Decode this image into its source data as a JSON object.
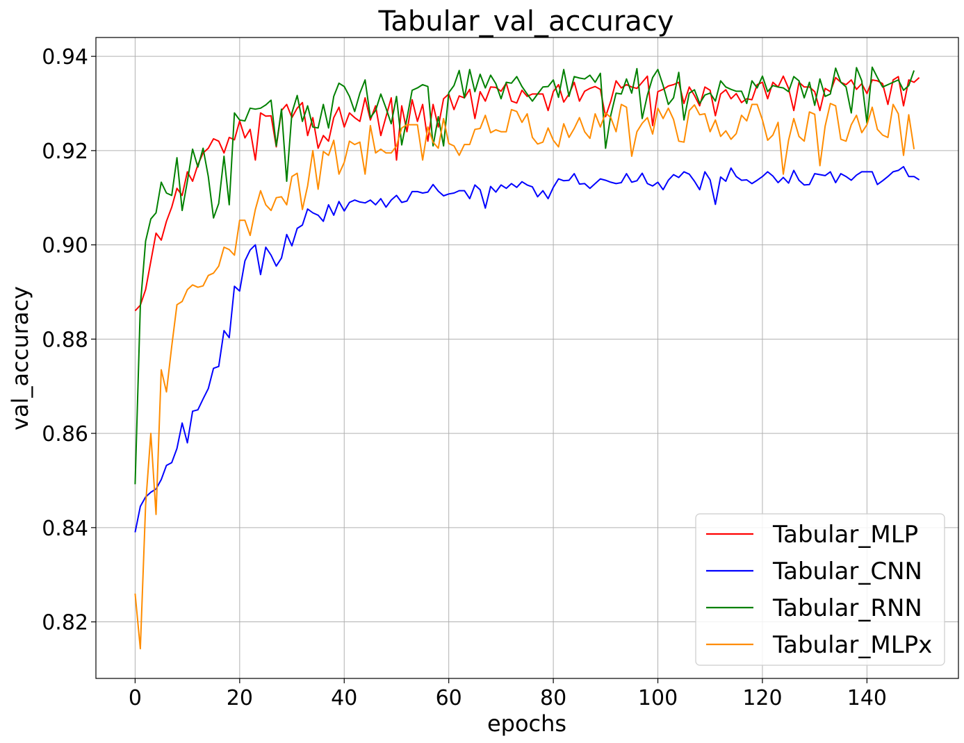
{
  "chart_data": {
    "type": "line",
    "title": "Tabular_val_accuracy",
    "xlabel": "epochs",
    "ylabel": "val_accuracy",
    "xlim": [
      -7.5,
      157.5
    ],
    "ylim": [
      0.808,
      0.944
    ],
    "xticks": [
      0,
      20,
      40,
      60,
      80,
      100,
      120,
      140
    ],
    "yticks": [
      0.82,
      0.84,
      0.86,
      0.88,
      0.9,
      0.92,
      0.94
    ],
    "ytick_labels": [
      "0.82",
      "0.84",
      "0.86",
      "0.88",
      "0.90",
      "0.92",
      "0.94"
    ],
    "grid": true,
    "legend_position": "bottom-right",
    "series": [
      {
        "name": "Tabular_MLP",
        "color": "#ff0000",
        "values": [
          0.886,
          0.8872,
          0.8905,
          0.8965,
          0.9025,
          0.901,
          0.905,
          0.908,
          0.912,
          0.9105,
          0.9155,
          0.9135,
          0.917,
          0.9195,
          0.9205,
          0.9225,
          0.922,
          0.9195,
          0.9228,
          0.9223,
          0.9263,
          0.9227,
          0.9245,
          0.918,
          0.928,
          0.9273,
          0.9274,
          0.9208,
          0.9285,
          0.9298,
          0.927,
          0.929,
          0.9302,
          0.9232,
          0.927,
          0.9205,
          0.9232,
          0.922,
          0.927,
          0.9292,
          0.925,
          0.928,
          0.927,
          0.9262,
          0.9312,
          0.9265,
          0.9295,
          0.9232,
          0.9272,
          0.9312,
          0.918,
          0.9295,
          0.924,
          0.9308,
          0.9262,
          0.9298,
          0.922,
          0.9298,
          0.925,
          0.931,
          0.932,
          0.9287,
          0.9316,
          0.9312,
          0.933,
          0.9268,
          0.9325,
          0.9305,
          0.9335,
          0.9334,
          0.9326,
          0.9343,
          0.9305,
          0.9301,
          0.9328,
          0.9315,
          0.932,
          0.932,
          0.932,
          0.9285,
          0.9325,
          0.934,
          0.9303,
          0.932,
          0.9345,
          0.9305,
          0.9326,
          0.9332,
          0.9336,
          0.933,
          0.9272,
          0.9305,
          0.9348,
          0.9333,
          0.934,
          0.9335,
          0.9332,
          0.9345,
          0.9358,
          0.9253,
          0.9325,
          0.933,
          0.9337,
          0.934,
          0.9345,
          0.93,
          0.9335,
          0.9317,
          0.9295,
          0.9335,
          0.9328,
          0.9274,
          0.932,
          0.9329,
          0.931,
          0.9321,
          0.9302,
          0.931,
          0.9308,
          0.934,
          0.9345,
          0.931,
          0.9345,
          0.9335,
          0.9358,
          0.9332,
          0.9285,
          0.9345,
          0.9335,
          0.9335,
          0.9325,
          0.9285,
          0.9332,
          0.9325,
          0.9355,
          0.9345,
          0.934,
          0.935,
          0.933,
          0.9342,
          0.9321,
          0.935,
          0.9348,
          0.9342,
          0.9298,
          0.935,
          0.9357,
          0.9295,
          0.935,
          0.9345,
          0.9355
        ]
      },
      {
        "name": "Tabular_CNN",
        "color": "#0000ff",
        "values": [
          0.839,
          0.8445,
          0.8465,
          0.8475,
          0.8482,
          0.8502,
          0.8532,
          0.8538,
          0.8568,
          0.8622,
          0.858,
          0.8647,
          0.865,
          0.8673,
          0.8695,
          0.8738,
          0.8742,
          0.8818,
          0.8803,
          0.8912,
          0.8902,
          0.8966,
          0.8989,
          0.9,
          0.8937,
          0.8995,
          0.8978,
          0.8955,
          0.8972,
          0.9022,
          0.8998,
          0.9035,
          0.9042,
          0.9076,
          0.9068,
          0.9063,
          0.905,
          0.9085,
          0.9063,
          0.9092,
          0.9072,
          0.909,
          0.9095,
          0.9091,
          0.9089,
          0.9095,
          0.9085,
          0.9098,
          0.908,
          0.9095,
          0.9105,
          0.909,
          0.9093,
          0.9113,
          0.9113,
          0.911,
          0.9112,
          0.9128,
          0.9114,
          0.9104,
          0.9108,
          0.911,
          0.9115,
          0.9115,
          0.9098,
          0.9127,
          0.9117,
          0.9078,
          0.9124,
          0.9112,
          0.9127,
          0.912,
          0.913,
          0.9122,
          0.9134,
          0.9127,
          0.9123,
          0.9102,
          0.9115,
          0.9098,
          0.9122,
          0.914,
          0.9136,
          0.9137,
          0.9151,
          0.9129,
          0.913,
          0.912,
          0.913,
          0.914,
          0.9137,
          0.9133,
          0.913,
          0.9132,
          0.9151,
          0.9133,
          0.9136,
          0.9152,
          0.913,
          0.9125,
          0.9133,
          0.9117,
          0.9137,
          0.9149,
          0.9143,
          0.9155,
          0.915,
          0.9135,
          0.9117,
          0.9155,
          0.9138,
          0.9086,
          0.9144,
          0.9135,
          0.9163,
          0.9145,
          0.9137,
          0.9138,
          0.913,
          0.9137,
          0.9145,
          0.9155,
          0.9146,
          0.9132,
          0.9143,
          0.9131,
          0.9158,
          0.9137,
          0.9127,
          0.9128,
          0.9151,
          0.9149,
          0.9147,
          0.9155,
          0.9132,
          0.9151,
          0.9145,
          0.9137,
          0.9148,
          0.9155,
          0.9155,
          0.9155,
          0.9128,
          0.9136,
          0.9145,
          0.9155,
          0.9158,
          0.9166,
          0.9145,
          0.9145,
          0.9138
        ]
      },
      {
        "name": "Tabular_RNN",
        "color": "#008000",
        "values": [
          0.8492,
          0.887,
          0.9008,
          0.9055,
          0.9068,
          0.9133,
          0.911,
          0.9105,
          0.9185,
          0.9073,
          0.9135,
          0.9203,
          0.9165,
          0.9205,
          0.9145,
          0.9057,
          0.9088,
          0.9188,
          0.9085,
          0.928,
          0.9265,
          0.9263,
          0.929,
          0.9288,
          0.929,
          0.9297,
          0.9307,
          0.921,
          0.9288,
          0.9135,
          0.928,
          0.9317,
          0.9262,
          0.9295,
          0.925,
          0.9248,
          0.9298,
          0.9248,
          0.9315,
          0.9343,
          0.9336,
          0.9315,
          0.9283,
          0.9322,
          0.935,
          0.927,
          0.9285,
          0.932,
          0.929,
          0.9257,
          0.9315,
          0.9212,
          0.9268,
          0.9328,
          0.9333,
          0.934,
          0.9336,
          0.921,
          0.9272,
          0.921,
          0.9323,
          0.9338,
          0.937,
          0.9312,
          0.9372,
          0.9325,
          0.9362,
          0.9333,
          0.936,
          0.9342,
          0.931,
          0.9345,
          0.9343,
          0.9357,
          0.9336,
          0.932,
          0.9305,
          0.932,
          0.9335,
          0.9336,
          0.935,
          0.9313,
          0.9372,
          0.9315,
          0.9357,
          0.9354,
          0.9352,
          0.936,
          0.9345,
          0.9364,
          0.9205,
          0.9275,
          0.9322,
          0.932,
          0.9352,
          0.9322,
          0.9374,
          0.9268,
          0.9318,
          0.9355,
          0.9372,
          0.9338,
          0.9298,
          0.9312,
          0.9366,
          0.9265,
          0.9322,
          0.9329,
          0.93,
          0.9318,
          0.9322,
          0.9305,
          0.9348,
          0.9335,
          0.933,
          0.9326,
          0.9326,
          0.93,
          0.9348,
          0.9333,
          0.9358,
          0.9325,
          0.9338,
          0.9335,
          0.9333,
          0.9325,
          0.9357,
          0.9348,
          0.9312,
          0.9345,
          0.9296,
          0.9352,
          0.9315,
          0.932,
          0.9375,
          0.9345,
          0.9335,
          0.928,
          0.9376,
          0.9348,
          0.9258,
          0.9377,
          0.9355,
          0.9335,
          0.934,
          0.9345,
          0.935,
          0.9328,
          0.9338,
          0.937
        ]
      },
      {
        "name": "Tabular_MLPx",
        "color": "#ff8c00",
        "values": [
          0.826,
          0.8143,
          0.8448,
          0.86,
          0.8428,
          0.8735,
          0.8688,
          0.8785,
          0.8873,
          0.888,
          0.8905,
          0.8915,
          0.891,
          0.8913,
          0.8935,
          0.894,
          0.8955,
          0.8995,
          0.899,
          0.8978,
          0.9052,
          0.9052,
          0.902,
          0.9075,
          0.9115,
          0.9085,
          0.9073,
          0.91,
          0.9102,
          0.9085,
          0.9145,
          0.9152,
          0.9075,
          0.9125,
          0.92,
          0.9118,
          0.9198,
          0.919,
          0.9222,
          0.915,
          0.9175,
          0.922,
          0.9213,
          0.9218,
          0.915,
          0.9253,
          0.9195,
          0.9203,
          0.9195,
          0.9195,
          0.921,
          0.9248,
          0.9255,
          0.9255,
          0.9255,
          0.918,
          0.925,
          0.9218,
          0.9205,
          0.9268,
          0.9215,
          0.921,
          0.919,
          0.9213,
          0.9213,
          0.9245,
          0.9247,
          0.9275,
          0.9238,
          0.9244,
          0.924,
          0.924,
          0.9287,
          0.9283,
          0.926,
          0.9278,
          0.9228,
          0.9214,
          0.9218,
          0.9248,
          0.9222,
          0.9208,
          0.9257,
          0.9228,
          0.9247,
          0.927,
          0.924,
          0.9226,
          0.9278,
          0.925,
          0.928,
          0.927,
          0.924,
          0.9298,
          0.9292,
          0.9188,
          0.924,
          0.9258,
          0.927,
          0.9235,
          0.929,
          0.9268,
          0.929,
          0.9266,
          0.922,
          0.9218,
          0.9285,
          0.9297,
          0.9276,
          0.9278,
          0.924,
          0.9265,
          0.923,
          0.9242,
          0.9224,
          0.9236,
          0.9275,
          0.9263,
          0.9298,
          0.9298,
          0.9265,
          0.9222,
          0.9233,
          0.926,
          0.915,
          0.9222,
          0.9268,
          0.923,
          0.922,
          0.9282,
          0.9277,
          0.9168,
          0.9252,
          0.93,
          0.9295,
          0.9224,
          0.922,
          0.9255,
          0.9275,
          0.9238,
          0.9255,
          0.9292,
          0.9245,
          0.9233,
          0.9228,
          0.9298,
          0.9278,
          0.919,
          0.9276,
          0.9203
        ]
      }
    ]
  }
}
